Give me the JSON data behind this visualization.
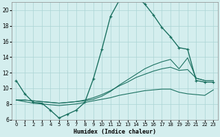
{
  "xlabel": "Humidex (Indice chaleur)",
  "bg_color": "#d4eeee",
  "grid_color": "#aad4d4",
  "line_color": "#1a7060",
  "xlim": [
    -0.5,
    23.5
  ],
  "ylim": [
    6,
    21
  ],
  "yticks": [
    6,
    8,
    10,
    12,
    14,
    16,
    18,
    20
  ],
  "xticks": [
    0,
    1,
    2,
    3,
    4,
    5,
    6,
    7,
    8,
    9,
    10,
    11,
    12,
    13,
    14,
    15,
    16,
    17,
    18,
    19,
    20,
    21,
    22,
    23
  ],
  "line1_x": [
    0,
    1,
    2,
    3,
    4,
    5,
    6,
    7,
    8,
    9,
    10,
    11,
    12,
    13,
    14,
    15,
    16,
    17,
    18,
    19,
    20,
    21,
    22,
    23
  ],
  "line1_y": [
    11.0,
    9.3,
    8.2,
    8.1,
    7.2,
    6.2,
    6.7,
    7.2,
    8.2,
    11.2,
    15.0,
    19.2,
    21.2,
    21.5,
    21.7,
    20.8,
    19.4,
    17.8,
    16.6,
    15.2,
    15.0,
    11.0,
    10.8,
    10.8
  ],
  "line2_x": [
    0,
    1,
    2,
    3,
    4,
    5,
    6,
    7,
    8,
    9,
    10,
    11,
    12,
    13,
    14,
    15,
    16,
    17,
    18,
    19,
    20,
    21,
    22,
    23
  ],
  "line2_y": [
    8.5,
    8.3,
    8.1,
    8.0,
    7.9,
    7.8,
    7.9,
    8.0,
    8.2,
    8.4,
    8.6,
    8.8,
    9.1,
    9.3,
    9.5,
    9.7,
    9.8,
    9.9,
    9.9,
    9.5,
    9.3,
    9.2,
    9.1,
    9.8
  ],
  "line3_x": [
    0,
    1,
    2,
    3,
    4,
    5,
    6,
    7,
    8,
    9,
    10,
    11,
    12,
    13,
    14,
    15,
    16,
    17,
    18,
    19,
    20,
    21,
    22,
    23
  ],
  "line3_y": [
    8.5,
    8.5,
    8.4,
    8.3,
    8.2,
    8.1,
    8.2,
    8.3,
    8.5,
    8.8,
    9.2,
    9.7,
    10.3,
    10.8,
    11.4,
    11.8,
    12.2,
    12.5,
    12.7,
    12.3,
    12.4,
    11.3,
    11.0,
    11.0
  ],
  "line4_x": [
    0,
    1,
    2,
    3,
    4,
    5,
    6,
    7,
    8,
    9,
    10,
    11,
    12,
    13,
    14,
    15,
    16,
    17,
    18,
    19,
    20,
    21,
    22,
    23
  ],
  "line4_y": [
    8.5,
    8.5,
    8.4,
    8.3,
    8.2,
    8.1,
    8.2,
    8.3,
    8.4,
    8.6,
    9.0,
    9.6,
    10.4,
    11.1,
    11.8,
    12.5,
    13.0,
    13.4,
    13.7,
    12.5,
    13.9,
    11.3,
    11.0,
    11.0
  ]
}
